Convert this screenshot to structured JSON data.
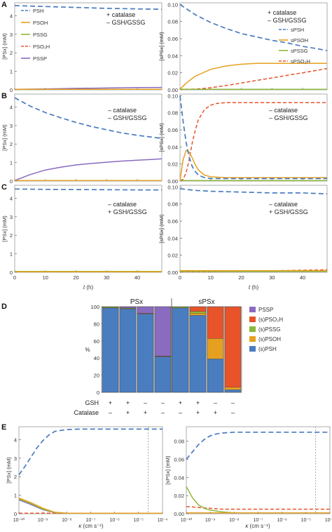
{
  "colors": {
    "PSH": "#4a7cc0",
    "PSOH": "#e6a020",
    "PSSG": "#8cb83a",
    "PSO2H": "#e8532a",
    "PSSP": "#8a6bbf",
    "dashline": "#888888",
    "frame": "#999999"
  },
  "panel_letters": [
    "A",
    "B",
    "C",
    "D",
    "E"
  ],
  "time_axis": {
    "xlabel_t": "t",
    "xlabel_unit": " (h)"
  },
  "kappa_axis": {
    "xlabel_kappa": "κ",
    "xlabel_unit": " (cm s⁻¹)",
    "tick_labels": [
      "10⁻¹⁰",
      "10⁻⁹",
      "10⁻⁸",
      "10⁻⁷",
      "10⁻⁶",
      "10⁻⁵",
      "10⁻⁴"
    ]
  },
  "chart_data": [
    {
      "id": "A-left",
      "type": "line",
      "ylabel": "[PSx] (mM)",
      "xlim": [
        0,
        48
      ],
      "ylim": [
        0,
        4.7
      ],
      "yticks": [
        "0",
        "1",
        "2",
        "3",
        "4"
      ],
      "xticks": [
        "0",
        "10",
        "20",
        "30",
        "40"
      ],
      "condition": [
        "+ catalase",
        "– GSH/GSSG"
      ],
      "legend": [
        "PSH",
        "PSOH",
        "PSSG",
        "PSO₂H",
        "PSSP"
      ],
      "series": [
        {
          "name": "PSH",
          "x": [
            0,
            10,
            20,
            30,
            40,
            48
          ],
          "values": [
            4.55,
            4.5,
            4.45,
            4.4,
            4.37,
            4.35
          ]
        },
        {
          "name": "PSOH",
          "x": [
            0,
            48
          ],
          "values": [
            0.02,
            0.02
          ]
        },
        {
          "name": "PSSG",
          "x": [
            0,
            48
          ],
          "values": [
            0.0,
            0.0
          ]
        },
        {
          "name": "PSO₂H",
          "x": [
            0,
            48
          ],
          "values": [
            0.0,
            0.01
          ]
        },
        {
          "name": "PSSP",
          "x": [
            0,
            10,
            20,
            30,
            40,
            48
          ],
          "values": [
            0.02,
            0.05,
            0.08,
            0.1,
            0.12,
            0.13
          ]
        }
      ]
    },
    {
      "id": "A-right",
      "type": "line",
      "ylabel": "[sPSx] (mM)",
      "xlim": [
        0,
        48
      ],
      "ylim": [
        0,
        0.102
      ],
      "yticks": [
        "0.00",
        "0.02",
        "0.04",
        "0.06",
        "0.08",
        "0.10"
      ],
      "xticks": [
        "0",
        "10",
        "20",
        "30",
        "40"
      ],
      "condition": [
        "+ catalase",
        "– GSH/GSSG"
      ],
      "legend": [
        "sPSH",
        "sPSOH",
        "sPSSG",
        "sPSO₂H"
      ],
      "series": [
        {
          "name": "sPSH",
          "x": [
            0,
            5,
            10,
            15,
            20,
            25,
            30,
            35,
            40,
            45,
            48
          ],
          "values": [
            0.1,
            0.088,
            0.079,
            0.072,
            0.066,
            0.062,
            0.058,
            0.055,
            0.051,
            0.048,
            0.046
          ]
        },
        {
          "name": "sPSOH",
          "x": [
            0,
            2,
            5,
            10,
            15,
            20,
            25,
            30,
            35,
            40,
            48
          ],
          "values": [
            0.0,
            0.008,
            0.016,
            0.024,
            0.028,
            0.03,
            0.031,
            0.031,
            0.031,
            0.031,
            0.031
          ]
        },
        {
          "name": "sPSSG",
          "x": [
            0,
            48
          ],
          "values": [
            0.0,
            0.0
          ]
        },
        {
          "name": "sPSO₂H",
          "x": [
            0,
            5,
            10,
            15,
            20,
            25,
            30,
            35,
            40,
            45,
            48
          ],
          "values": [
            0.0,
            0.0008,
            0.0025,
            0.005,
            0.008,
            0.011,
            0.014,
            0.017,
            0.02,
            0.023,
            0.025
          ]
        }
      ]
    },
    {
      "id": "B-left",
      "type": "line",
      "ylabel": "[PSx] (mM)",
      "xlim": [
        0,
        48
      ],
      "ylim": [
        0,
        4.7
      ],
      "yticks": [
        "0",
        "1",
        "2",
        "3",
        "4"
      ],
      "xticks": [
        "0",
        "10",
        "20",
        "30",
        "40"
      ],
      "condition": [
        "– catalase",
        "– GSH/GSSG"
      ],
      "series": [
        {
          "name": "PSH",
          "x": [
            0,
            5,
            10,
            15,
            20,
            25,
            30,
            35,
            40,
            45,
            48
          ],
          "values": [
            4.5,
            4.05,
            3.7,
            3.42,
            3.17,
            2.95,
            2.77,
            2.6,
            2.47,
            2.37,
            2.3
          ]
        },
        {
          "name": "PSOH",
          "x": [
            0,
            48
          ],
          "values": [
            0.03,
            0.03
          ]
        },
        {
          "name": "PSSG",
          "x": [
            0,
            48
          ],
          "values": [
            0.0,
            0.0
          ]
        },
        {
          "name": "PSO₂H",
          "x": [
            0,
            48
          ],
          "values": [
            0.0,
            0.02
          ]
        },
        {
          "name": "PSSP",
          "x": [
            0,
            5,
            10,
            15,
            20,
            25,
            30,
            35,
            40,
            45,
            48
          ],
          "values": [
            0.0,
            0.35,
            0.6,
            0.75,
            0.87,
            0.95,
            1.02,
            1.08,
            1.13,
            1.17,
            1.2
          ]
        }
      ]
    },
    {
      "id": "B-right",
      "type": "line",
      "ylabel": "[sPSx] (mM)",
      "xlim": [
        0,
        48
      ],
      "ylim": [
        0,
        0.102
      ],
      "yticks": [
        "0.00",
        "0.02",
        "0.04",
        "0.06",
        "0.08",
        "0.10"
      ],
      "xticks": [
        "0",
        "10",
        "20",
        "30",
        "40"
      ],
      "condition": [
        "– catalase",
        "– GSH/GSSG"
      ],
      "series": [
        {
          "name": "sPSH",
          "x": [
            0,
            1,
            2,
            3,
            4,
            5,
            6,
            8,
            10,
            15,
            20,
            48
          ],
          "values": [
            0.1,
            0.07,
            0.045,
            0.028,
            0.017,
            0.011,
            0.007,
            0.004,
            0.003,
            0.003,
            0.003,
            0.003
          ]
        },
        {
          "name": "sPSOH",
          "x": [
            0,
            1,
            2,
            3,
            4,
            5,
            6,
            8,
            10,
            15,
            20,
            48
          ],
          "values": [
            0.0,
            0.025,
            0.036,
            0.034,
            0.027,
            0.019,
            0.013,
            0.007,
            0.005,
            0.004,
            0.004,
            0.004
          ]
        },
        {
          "name": "sPSSG",
          "x": [
            0,
            48
          ],
          "values": [
            0.0,
            0.0
          ]
        },
        {
          "name": "sPSO₂H",
          "x": [
            0,
            1,
            2,
            3,
            4,
            5,
            6,
            8,
            10,
            12,
            15,
            20,
            48
          ],
          "values": [
            0.0,
            0.002,
            0.01,
            0.025,
            0.045,
            0.06,
            0.072,
            0.084,
            0.089,
            0.091,
            0.092,
            0.092,
            0.092
          ]
        }
      ]
    },
    {
      "id": "C-left",
      "type": "line",
      "ylabel": "[PSx] (mM)",
      "xlim": [
        0,
        48
      ],
      "ylim": [
        0,
        4.7
      ],
      "yticks": [
        "0",
        "1",
        "2",
        "3",
        "4"
      ],
      "xticks": [
        "0",
        "10",
        "20",
        "30",
        "40"
      ],
      "condition": [
        "– catalase",
        "+ GSH/GSSG"
      ],
      "series": [
        {
          "name": "PSH",
          "x": [
            0,
            10,
            20,
            30,
            40,
            48
          ],
          "values": [
            4.5,
            4.48,
            4.47,
            4.46,
            4.45,
            4.45
          ]
        },
        {
          "name": "PSOH",
          "x": [
            0,
            48
          ],
          "values": [
            0.02,
            0.02
          ]
        },
        {
          "name": "PSSG",
          "x": [
            0,
            48
          ],
          "values": [
            0.05,
            0.05
          ]
        },
        {
          "name": "PSO₂H",
          "x": [
            0,
            48
          ],
          "values": [
            0.0,
            0.0
          ]
        },
        {
          "name": "PSSP",
          "x": [
            0,
            48
          ],
          "values": [
            0.0,
            0.0
          ]
        }
      ]
    },
    {
      "id": "C-right",
      "type": "line",
      "ylabel": "[sPSx] (mM)",
      "xlim": [
        0,
        48
      ],
      "ylim": [
        0,
        0.102
      ],
      "yticks": [
        "0.00",
        "0.02",
        "0.04",
        "0.06",
        "0.08",
        "0.10"
      ],
      "xticks": [
        "0",
        "10",
        "20",
        "30",
        "40"
      ],
      "condition": [
        "– catalase",
        "+ GSH/GSSG"
      ],
      "series": [
        {
          "name": "sPSH",
          "x": [
            0,
            5,
            10,
            20,
            30,
            40,
            48
          ],
          "values": [
            0.098,
            0.096,
            0.095,
            0.094,
            0.093,
            0.093,
            0.092
          ]
        },
        {
          "name": "sPSOH",
          "x": [
            0,
            5,
            10,
            20,
            30,
            40,
            48
          ],
          "values": [
            0.002,
            0.002,
            0.002,
            0.002,
            0.002,
            0.002,
            0.002
          ]
        },
        {
          "name": "sPSSG",
          "x": [
            0,
            48
          ],
          "values": [
            0.001,
            0.001
          ]
        },
        {
          "name": "sPSO₂H",
          "x": [
            0,
            10,
            20,
            30,
            40,
            48
          ],
          "values": [
            0.0,
            0.0005,
            0.001,
            0.0017,
            0.0025,
            0.003
          ]
        }
      ]
    },
    {
      "id": "D",
      "type": "bar",
      "stacked": true,
      "ylabel": "%",
      "ylim": [
        0,
        100
      ],
      "yticks": [
        "0",
        "20",
        "40",
        "60",
        "80",
        "100"
      ],
      "group_labels": [
        "PSx",
        "sPSx"
      ],
      "row_labels": [
        "GSH",
        "Catalase"
      ],
      "gsh": [
        "+",
        "+",
        "–",
        "–",
        "+",
        "+",
        "–",
        "–"
      ],
      "catalase": [
        "–",
        "+",
        "+",
        "–",
        "–",
        "+",
        "+",
        "–"
      ],
      "legend": [
        "PSSP",
        "(s)PSO₂H",
        "(s)PSSG",
        "(s)PSOH",
        "(s)PSH"
      ],
      "series": [
        {
          "name": "(s)PSH",
          "values": [
            98.5,
            97.5,
            91.5,
            41.5,
            98.5,
            90,
            39,
            3
          ]
        },
        {
          "name": "(s)PSOH",
          "values": [
            0.5,
            0.5,
            0.5,
            0.5,
            0.3,
            2.5,
            24,
            3
          ]
        },
        {
          "name": "(s)PSSG",
          "values": [
            1,
            0.5,
            0,
            0,
            1.2,
            2,
            0,
            0
          ]
        },
        {
          "name": "(s)PSO₂H",
          "values": [
            0,
            0,
            0.3,
            0.5,
            0,
            5.5,
            37,
            94
          ]
        },
        {
          "name": "PSSP",
          "values": [
            0,
            1.5,
            7.7,
            57.5,
            0,
            0,
            0,
            0
          ]
        }
      ]
    },
    {
      "id": "E-left",
      "type": "line",
      "ylabel": "[PSx] (mM)",
      "xscale": "log",
      "xlim": [
        -10,
        -4
      ],
      "ylim": [
        0,
        4.7
      ],
      "yticks": [
        "0",
        "1",
        "2",
        "3",
        "4"
      ],
      "vline_log10_kappa": -4.6,
      "series": [
        {
          "name": "PSH",
          "x": [
            -10,
            -9.75,
            -9.5,
            -9.25,
            -9,
            -8.75,
            -8.5,
            -8,
            -7.5,
            -7,
            -4
          ],
          "values": [
            2.1,
            2.55,
            3.05,
            3.55,
            3.95,
            4.25,
            4.45,
            4.55,
            4.57,
            4.57,
            4.57
          ]
        },
        {
          "name": "PSOH",
          "x": [
            -10,
            -9.5,
            -9,
            -8.5,
            -8,
            -4
          ],
          "values": [
            0.85,
            0.6,
            0.3,
            0.08,
            0.01,
            0.0
          ]
        },
        {
          "name": "PSSG",
          "x": [
            -10,
            -9.5,
            -9,
            -8.5,
            -8,
            -4
          ],
          "values": [
            0.8,
            0.55,
            0.25,
            0.06,
            0.01,
            0.0
          ]
        },
        {
          "name": "PSO₂H",
          "x": [
            -10,
            -4
          ],
          "values": [
            0.02,
            0.01
          ]
        },
        {
          "name": "PSSP",
          "x": [
            -10,
            -9.5,
            -9,
            -8.5,
            -8,
            -4
          ],
          "values": [
            0.75,
            0.5,
            0.22,
            0.05,
            0.01,
            0.0
          ]
        }
      ]
    },
    {
      "id": "E-right",
      "type": "line",
      "ylabel": "[sPSx] (mM)",
      "xscale": "log",
      "xlim": [
        -10,
        -4
      ],
      "ylim": [
        0,
        0.096
      ],
      "yticks": [
        "0.00",
        "0.02",
        "0.04",
        "0.06",
        "0.08"
      ],
      "vline_log10_kappa": -4.6,
      "series": [
        {
          "name": "sPSH",
          "x": [
            -10,
            -9.75,
            -9.5,
            -9.25,
            -9,
            -8.75,
            -8.5,
            -8,
            -7,
            -4
          ],
          "values": [
            0.06,
            0.068,
            0.076,
            0.082,
            0.086,
            0.088,
            0.089,
            0.09,
            0.09,
            0.09
          ]
        },
        {
          "name": "sPSOH",
          "x": [
            -10,
            -4
          ],
          "values": [
            0.001,
            0.001
          ]
        },
        {
          "name": "sPSSG",
          "x": [
            -10,
            -9.75,
            -9.5,
            -9.25,
            -9,
            -8.5,
            -8,
            -4
          ],
          "values": [
            0.03,
            0.018,
            0.01,
            0.006,
            0.004,
            0.002,
            0.001,
            0.001
          ]
        },
        {
          "name": "sPSO₂H",
          "x": [
            -10,
            -9.5,
            -9,
            -8.5,
            -8,
            -4
          ],
          "values": [
            0.008,
            0.007,
            0.006,
            0.005,
            0.005,
            0.005
          ]
        }
      ]
    }
  ]
}
